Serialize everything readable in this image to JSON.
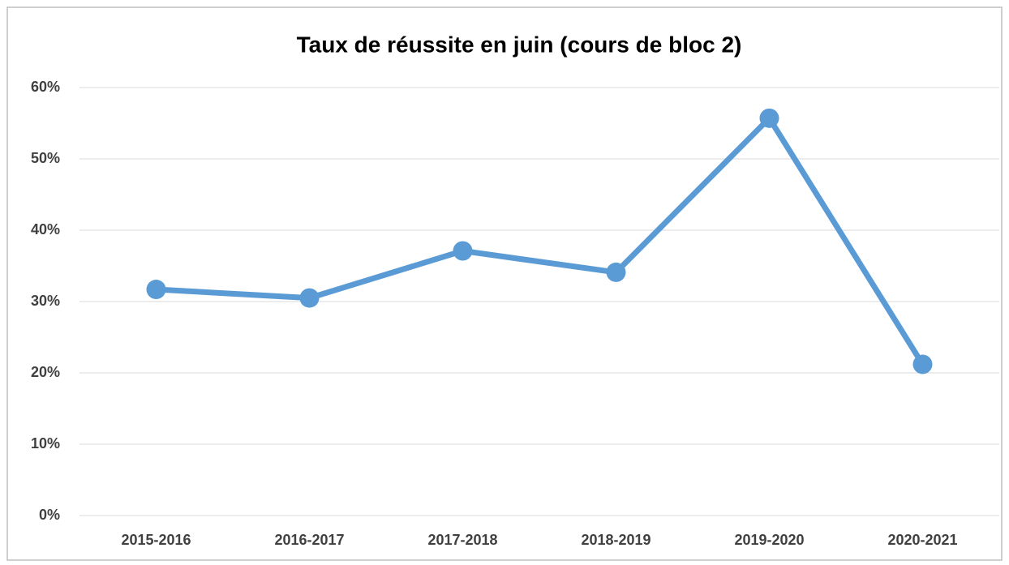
{
  "chart_data": {
    "type": "line",
    "title": "Taux de réussite en juin (cours de bloc 2)",
    "categories": [
      "2015-2016",
      "2016-2017",
      "2017-2018",
      "2018-2019",
      "2019-2020",
      "2020-2021"
    ],
    "values": [
      31.7,
      30.5,
      37.1,
      34.1,
      55.7,
      21.2
    ],
    "color": "#5b9bd5",
    "ylim": [
      0,
      60
    ],
    "yticks": [
      {
        "value": 0,
        "label": "0%"
      },
      {
        "value": 10,
        "label": "10%"
      },
      {
        "value": 20,
        "label": "20%"
      },
      {
        "value": 30,
        "label": "30%"
      },
      {
        "value": 40,
        "label": "40%"
      },
      {
        "value": 50,
        "label": "50%"
      },
      {
        "value": 60,
        "label": "60%"
      }
    ],
    "grid": true
  }
}
